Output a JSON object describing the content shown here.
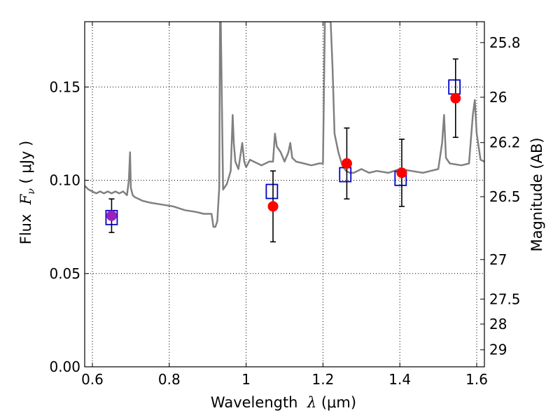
{
  "chart_data": {
    "type": "scatter",
    "xlabel_parts": {
      "prefix": "Wavelength  ",
      "symbol": "λ",
      "unit": " (μm)"
    },
    "ylabel_parts": {
      "prefix": "Flux  ",
      "symbol": "F",
      "subscript": "ν",
      "unit": "  ( μJy )"
    },
    "y2label": "Magnitude (AB)",
    "xlim": [
      0.58,
      1.62
    ],
    "ylim": [
      0.0,
      0.185
    ],
    "x_ticks": [
      0.6,
      0.8,
      1.0,
      1.2,
      1.4,
      1.6
    ],
    "x_tick_labels": [
      "0.6",
      "0.8",
      "1",
      "1.2",
      "1.4",
      "1.6"
    ],
    "y_ticks": [
      0.0,
      0.05,
      0.1,
      0.15
    ],
    "y_tick_labels": [
      "0.00",
      "0.05",
      "0.10",
      "0.15"
    ],
    "y2_ticks": [
      {
        "label": "25.8",
        "flux": 0.1738
      },
      {
        "label": "26",
        "flux": 0.1445
      },
      {
        "label": "26.2",
        "flux": 0.1202
      },
      {
        "label": "26.5",
        "flux": 0.0912
      },
      {
        "label": "27",
        "flux": 0.0575
      },
      {
        "label": "27.5",
        "flux": 0.0363
      },
      {
        "label": "28",
        "flux": 0.0229
      },
      {
        "label": "29",
        "flux": 0.0091
      }
    ],
    "grid": true,
    "colors": {
      "spectrum": "#808080",
      "observed": "#ff0000",
      "observed_first": "#9b1fbf",
      "model": "#0000cc",
      "errorbar": "#000000"
    },
    "spectrum": {
      "x": [
        0.58,
        0.59,
        0.6,
        0.61,
        0.62,
        0.63,
        0.64,
        0.65,
        0.66,
        0.67,
        0.68,
        0.69,
        0.695,
        0.698,
        0.7,
        0.705,
        0.71,
        0.73,
        0.75,
        0.78,
        0.81,
        0.84,
        0.87,
        0.89,
        0.91,
        0.915,
        0.92,
        0.925,
        0.93,
        0.932,
        0.934,
        0.94,
        0.95,
        0.96,
        0.965,
        0.968,
        0.972,
        0.98,
        0.99,
        0.995,
        1.0,
        1.01,
        1.02,
        1.04,
        1.06,
        1.07,
        1.075,
        1.08,
        1.09,
        1.1,
        1.11,
        1.115,
        1.12,
        1.13,
        1.15,
        1.17,
        1.19,
        1.2,
        1.205,
        1.21,
        1.22,
        1.225,
        1.23,
        1.24,
        1.25,
        1.26,
        1.27,
        1.28,
        1.29,
        1.3,
        1.32,
        1.34,
        1.37,
        1.4,
        1.43,
        1.46,
        1.48,
        1.5,
        1.51,
        1.515,
        1.52,
        1.53,
        1.56,
        1.58,
        1.59,
        1.595,
        1.6,
        1.61,
        1.62
      ],
      "y": [
        0.097,
        0.095,
        0.094,
        0.093,
        0.094,
        0.093,
        0.094,
        0.093,
        0.094,
        0.093,
        0.094,
        0.092,
        0.1,
        0.115,
        0.096,
        0.092,
        0.091,
        0.089,
        0.088,
        0.087,
        0.086,
        0.084,
        0.083,
        0.082,
        0.082,
        0.075,
        0.075,
        0.078,
        0.096,
        0.185,
        0.185,
        0.095,
        0.098,
        0.105,
        0.135,
        0.12,
        0.11,
        0.106,
        0.12,
        0.11,
        0.107,
        0.111,
        0.11,
        0.108,
        0.11,
        0.11,
        0.125,
        0.118,
        0.115,
        0.11,
        0.115,
        0.12,
        0.112,
        0.11,
        0.109,
        0.108,
        0.109,
        0.109,
        0.185,
        0.185,
        0.185,
        0.16,
        0.125,
        0.115,
        0.108,
        0.105,
        0.104,
        0.104,
        0.105,
        0.106,
        0.104,
        0.105,
        0.104,
        0.106,
        0.105,
        0.104,
        0.105,
        0.106,
        0.12,
        0.135,
        0.112,
        0.109,
        0.108,
        0.109,
        0.135,
        0.143,
        0.125,
        0.111,
        0.11
      ]
    },
    "observed": [
      {
        "x": 0.65,
        "y": 0.081,
        "err": 0.009
      },
      {
        "x": 1.07,
        "y": 0.086,
        "err": 0.019
      },
      {
        "x": 1.262,
        "y": 0.109,
        "err": 0.019
      },
      {
        "x": 1.405,
        "y": 0.104,
        "err": 0.018
      },
      {
        "x": 1.545,
        "y": 0.144,
        "err": 0.021
      }
    ],
    "model": [
      {
        "x": 0.65,
        "y": 0.08
      },
      {
        "x": 1.067,
        "y": 0.094
      },
      {
        "x": 1.258,
        "y": 0.103
      },
      {
        "x": 1.402,
        "y": 0.101
      },
      {
        "x": 1.542,
        "y": 0.15
      }
    ]
  }
}
